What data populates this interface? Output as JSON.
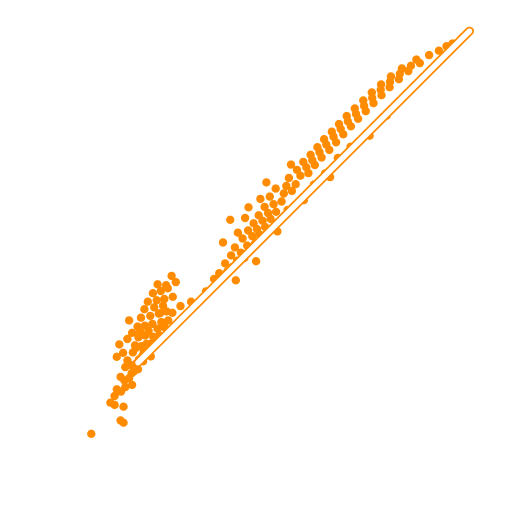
{
  "chart_data": {
    "type": "scatter",
    "title": "",
    "xlabel": "",
    "ylabel": "",
    "grid": false,
    "axes_visible": false,
    "xlim": [
      0,
      100
    ],
    "ylim": [
      0,
      100
    ],
    "point_color": "#FF8C00",
    "trend_color": "#FF8C00",
    "series": [
      {
        "points": [
          [
            5.0,
            11.5
          ],
          [
            11.9,
            14.5
          ],
          [
            12.6,
            14.0
          ],
          [
            9.5,
            18.5
          ],
          [
            10.5,
            18.0
          ],
          [
            12.6,
            17.6
          ],
          [
            10.5,
            20.0
          ],
          [
            11.0,
            21.5
          ],
          [
            12.0,
            21.0
          ],
          [
            13.0,
            22.0
          ],
          [
            14.6,
            22.5
          ],
          [
            12.8,
            23.5
          ],
          [
            11.9,
            24.3
          ],
          [
            13.9,
            24.0
          ],
          [
            14.5,
            25.1
          ],
          [
            15.0,
            25.5
          ],
          [
            16.0,
            26.0
          ],
          [
            13.0,
            26.5
          ],
          [
            14.2,
            27.0
          ],
          [
            15.6,
            27.3
          ],
          [
            11.0,
            28.8
          ],
          [
            13.5,
            28.0
          ],
          [
            16.2,
            28.2
          ],
          [
            17.0,
            29.0
          ],
          [
            12.5,
            29.7
          ],
          [
            14.8,
            29.8
          ],
          [
            17.4,
            30.0
          ],
          [
            18.6,
            30.0
          ],
          [
            15.5,
            30.8
          ],
          [
            16.8,
            31.2
          ],
          [
            11.6,
            31.6
          ],
          [
            18.0,
            31.7
          ],
          [
            19.2,
            31.8
          ],
          [
            20.1,
            32.4
          ],
          [
            13.5,
            32.8
          ],
          [
            16.1,
            33.2
          ],
          [
            17.7,
            33.6
          ],
          [
            19.6,
            33.3
          ],
          [
            21.0,
            33.6
          ],
          [
            14.6,
            34.2
          ],
          [
            18.5,
            34.6
          ],
          [
            20.6,
            35.1
          ],
          [
            22.3,
            35.4
          ],
          [
            15.9,
            35.6
          ],
          [
            17.6,
            35.8
          ],
          [
            19.4,
            36.2
          ],
          [
            21.5,
            36.6
          ],
          [
            23.1,
            37.0
          ],
          [
            13.9,
            37.0
          ],
          [
            16.7,
            37.6
          ],
          [
            18.9,
            38.0
          ],
          [
            20.9,
            38.5
          ],
          [
            22.7,
            39.0
          ],
          [
            24.1,
            38.7
          ],
          [
            17.5,
            39.5
          ],
          [
            19.8,
            39.9
          ],
          [
            21.9,
            40.3
          ],
          [
            18.3,
            41.2
          ],
          [
            20.4,
            41.5
          ],
          [
            22.2,
            41.8
          ],
          [
            24.2,
            42.3
          ],
          [
            19.5,
            43.1
          ],
          [
            21.4,
            43.6
          ],
          [
            23.0,
            44.2
          ],
          [
            26.0,
            40.2
          ],
          [
            28.5,
            41.2
          ],
          [
            20.6,
            45.1
          ],
          [
            22.6,
            44.9
          ],
          [
            24.9,
            45.6
          ],
          [
            23.9,
            47.0
          ],
          [
            21.2,
            38.6
          ],
          [
            15.3,
            31.4
          ],
          [
            19.0,
            28.9
          ],
          [
            17.2,
            27.8
          ],
          [
            16.5,
            34.4
          ],
          [
            32.0,
            43.5
          ],
          [
            33.9,
            46.3
          ],
          [
            35.1,
            47.6
          ],
          [
            37.0,
            48.0
          ],
          [
            38.2,
            49.0
          ],
          [
            36.5,
            49.8
          ],
          [
            39.3,
            50.4
          ],
          [
            41.0,
            51.0
          ],
          [
            37.9,
            51.6
          ],
          [
            40.2,
            52.2
          ],
          [
            42.4,
            52.6
          ],
          [
            38.8,
            53.4
          ],
          [
            41.7,
            53.8
          ],
          [
            43.5,
            54.2
          ],
          [
            36.0,
            54.5
          ],
          [
            40.6,
            55.4
          ],
          [
            42.9,
            55.9
          ],
          [
            44.6,
            56.3
          ],
          [
            39.5,
            56.7
          ],
          [
            41.9,
            57.2
          ],
          [
            44.0,
            57.5
          ],
          [
            45.9,
            58.0
          ],
          [
            43.2,
            58.8
          ],
          [
            45.3,
            59.4
          ],
          [
            47.2,
            59.8
          ],
          [
            41.2,
            60.0
          ],
          [
            44.4,
            60.6
          ],
          [
            46.6,
            61.1
          ],
          [
            48.5,
            61.4
          ],
          [
            37.7,
            59.6
          ],
          [
            42.0,
            62.4
          ],
          [
            45.8,
            62.5
          ],
          [
            47.9,
            63.1
          ],
          [
            49.8,
            63.7
          ],
          [
            44.8,
            64.3
          ],
          [
            47.0,
            64.8
          ],
          [
            50.3,
            65.5
          ],
          [
            52.2,
            66.1
          ],
          [
            48.4,
            66.6
          ],
          [
            50.9,
            67.2
          ],
          [
            53.1,
            67.6
          ],
          [
            51.5,
            69.0
          ],
          [
            54.2,
            69.5
          ],
          [
            56.1,
            70.1
          ],
          [
            53.4,
            70.8
          ],
          [
            55.6,
            71.4
          ],
          [
            57.6,
            71.9
          ],
          [
            54.9,
            72.6
          ],
          [
            57.0,
            73.0
          ],
          [
            59.2,
            73.6
          ],
          [
            56.6,
            74.2
          ],
          [
            58.7,
            74.8
          ],
          [
            61.0,
            75.3
          ],
          [
            58.2,
            75.9
          ],
          [
            60.3,
            76.5
          ],
          [
            62.6,
            77.0
          ],
          [
            59.8,
            77.7
          ],
          [
            62.0,
            78.3
          ],
          [
            64.3,
            78.8
          ],
          [
            61.6,
            79.4
          ],
          [
            63.7,
            80.0
          ],
          [
            66.1,
            80.6
          ],
          [
            63.3,
            81.1
          ],
          [
            65.4,
            81.7
          ],
          [
            67.8,
            82.3
          ],
          [
            65.1,
            82.9
          ],
          [
            67.3,
            83.4
          ],
          [
            69.6,
            84.0
          ],
          [
            67.0,
            84.6
          ],
          [
            69.2,
            85.2
          ],
          [
            71.4,
            85.8
          ],
          [
            69.0,
            86.4
          ],
          [
            71.1,
            87.0
          ],
          [
            73.3,
            87.6
          ],
          [
            71.0,
            88.2
          ],
          [
            73.1,
            88.8
          ],
          [
            75.2,
            89.4
          ],
          [
            73.2,
            90.0
          ],
          [
            75.3,
            90.6
          ],
          [
            77.4,
            91.2
          ],
          [
            75.5,
            91.8
          ],
          [
            77.6,
            92.4
          ],
          [
            79.6,
            93.0
          ],
          [
            78.1,
            93.6
          ],
          [
            80.2,
            94.2
          ],
          [
            82.3,
            94.8
          ],
          [
            81.5,
            95.6
          ],
          [
            84.5,
            96.6
          ],
          [
            86.8,
            97.6
          ],
          [
            88.6,
            98.6
          ],
          [
            90.0,
            99.2
          ],
          [
            46.2,
            68.0
          ],
          [
            52.0,
            72.0
          ],
          [
            60.0,
            70.0
          ],
          [
            55.0,
            64.0
          ],
          [
            63.0,
            73.5
          ],
          [
            66.0,
            76.0
          ],
          [
            70.5,
            78.5
          ],
          [
            74.5,
            83.0
          ],
          [
            48.8,
            57.0
          ],
          [
            43.8,
            50.3
          ],
          [
            39.0,
            46.0
          ],
          [
            51.2,
            61.8
          ],
          [
            57.4,
            67.5
          ],
          [
            61.2,
            69.2
          ]
        ]
      }
    ],
    "trend_line": {
      "from": [
        16.0,
        27.5
      ],
      "to": [
        94.0,
        102.0
      ]
    }
  }
}
